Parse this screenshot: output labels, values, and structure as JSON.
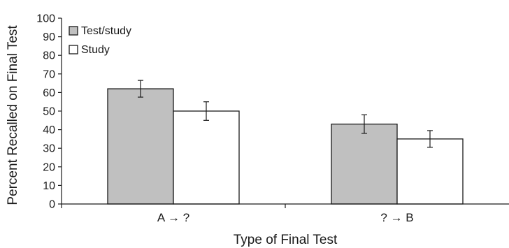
{
  "chart_data": {
    "type": "bar",
    "categories": [
      "A → ?",
      "? → B"
    ],
    "series": [
      {
        "name": "Test/study",
        "values": [
          62,
          43
        ],
        "errors": [
          4.5,
          5
        ],
        "color": "#c0c0c0"
      },
      {
        "name": "Study",
        "values": [
          50,
          35
        ],
        "errors": [
          5,
          4.5
        ],
        "color": "#ffffff"
      }
    ],
    "xlabel": "Type of Final Test",
    "ylabel": "Percent Recalled on Final Test",
    "ylim": [
      0,
      100
    ],
    "yticks": [
      0,
      10,
      20,
      30,
      40,
      50,
      60,
      70,
      80,
      90,
      100
    ],
    "grid": false,
    "legend": "top-left"
  }
}
